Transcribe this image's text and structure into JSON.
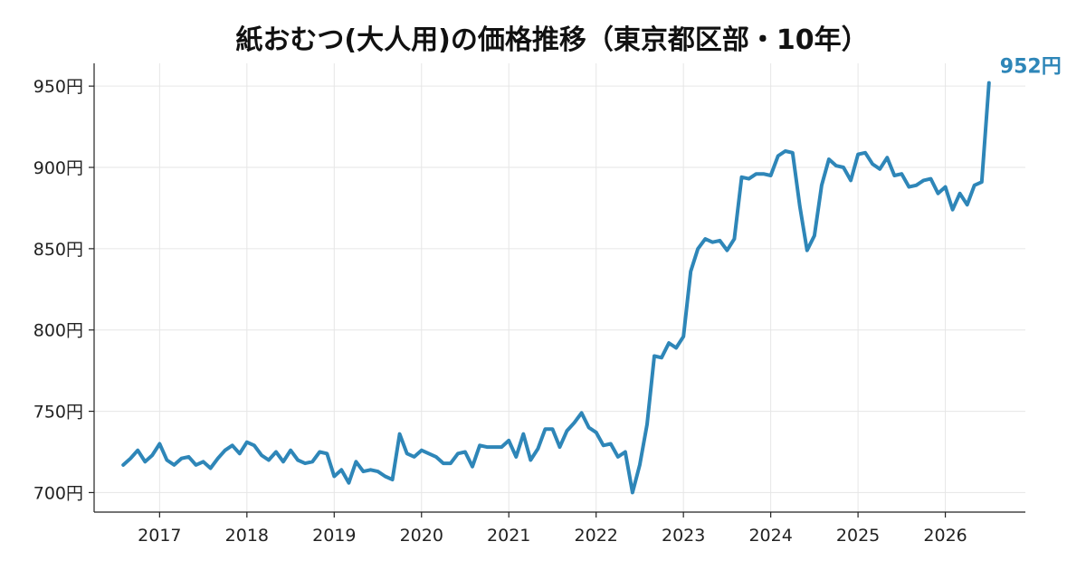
{
  "chart_data": {
    "type": "line",
    "title": "紙おむつ(大人用)の価格推移（東京都区部・10年）",
    "xlabel": "",
    "ylabel": "",
    "y_unit": "円",
    "ylim": [
      688,
      964
    ],
    "yticks": [
      700,
      750,
      800,
      850,
      900,
      950
    ],
    "ytick_labels": [
      "700円",
      "750円",
      "800円",
      "850円",
      "900円",
      "950円"
    ],
    "xlim": [
      "2016-04",
      "2026-12"
    ],
    "xticks": [
      "2017-01",
      "2018-01",
      "2019-01",
      "2020-01",
      "2021-01",
      "2022-01",
      "2023-01",
      "2024-01",
      "2025-01",
      "2026-01"
    ],
    "xtick_labels": [
      "2017",
      "2018",
      "2019",
      "2020",
      "2021",
      "2022",
      "2023",
      "2024",
      "2025",
      "2026"
    ],
    "grid": true,
    "line_color": "#2e86b8",
    "end_label": "952円",
    "series": [
      {
        "x": [
          "2016-08",
          "2016-09",
          "2016-10",
          "2016-11",
          "2016-12",
          "2017-01",
          "2017-02",
          "2017-03",
          "2017-04",
          "2017-05",
          "2017-06",
          "2017-07",
          "2017-08",
          "2017-09",
          "2017-10",
          "2017-11",
          "2017-12",
          "2018-01",
          "2018-02",
          "2018-03",
          "2018-04",
          "2018-05",
          "2018-06",
          "2018-07",
          "2018-08",
          "2018-09",
          "2018-10",
          "2018-11",
          "2018-12",
          "2019-01",
          "2019-02",
          "2019-03",
          "2019-04",
          "2019-05",
          "2019-06",
          "2019-07",
          "2019-08",
          "2019-09",
          "2019-10",
          "2019-11",
          "2019-12",
          "2020-01",
          "2020-02",
          "2020-03",
          "2020-04",
          "2020-05",
          "2020-06",
          "2020-07",
          "2020-08",
          "2020-09",
          "2020-10",
          "2020-11",
          "2020-12",
          "2021-01",
          "2021-02",
          "2021-03",
          "2021-04",
          "2021-05",
          "2021-06",
          "2021-07",
          "2021-08",
          "2021-09",
          "2021-10",
          "2021-11",
          "2021-12",
          "2022-01",
          "2022-02",
          "2022-03",
          "2022-04",
          "2022-05",
          "2022-06",
          "2022-07",
          "2022-08",
          "2022-09",
          "2022-10",
          "2022-11",
          "2022-12",
          "2023-01",
          "2023-02",
          "2023-03",
          "2023-04",
          "2023-05",
          "2023-06",
          "2023-07",
          "2023-08",
          "2023-09",
          "2023-10",
          "2023-11",
          "2023-12",
          "2024-01",
          "2024-02",
          "2024-03",
          "2024-04",
          "2024-05",
          "2024-06",
          "2024-07",
          "2024-08",
          "2024-09",
          "2024-10",
          "2024-11",
          "2024-12",
          "2025-01",
          "2025-02",
          "2025-03",
          "2025-04",
          "2025-05",
          "2025-06",
          "2025-07",
          "2025-08",
          "2025-09",
          "2025-10",
          "2025-11",
          "2025-12",
          "2026-01",
          "2026-02",
          "2026-03",
          "2026-04",
          "2026-05",
          "2026-06",
          "2026-07"
        ],
        "y": [
          717,
          721,
          726,
          719,
          723,
          730,
          720,
          717,
          721,
          722,
          717,
          719,
          715,
          721,
          726,
          729,
          724,
          731,
          729,
          723,
          720,
          725,
          719,
          726,
          720,
          718,
          719,
          725,
          724,
          710,
          714,
          706,
          719,
          713,
          714,
          713,
          710,
          708,
          736,
          724,
          722,
          726,
          724,
          722,
          718,
          718,
          724,
          725,
          716,
          729,
          728,
          728,
          728,
          732,
          722,
          736,
          720,
          727,
          739,
          739,
          728,
          738,
          743,
          749,
          740,
          737,
          729,
          730,
          722,
          725,
          700,
          717,
          742,
          784,
          783,
          792,
          789,
          796,
          836,
          850,
          856,
          854,
          855,
          849,
          856,
          894,
          893,
          896,
          896,
          895,
          907,
          910,
          909,
          876,
          849,
          858,
          889,
          905,
          901,
          900,
          892,
          908,
          909,
          902,
          899,
          906,
          895,
          896,
          888,
          889,
          892,
          893,
          884,
          888,
          874,
          884,
          877,
          889,
          891,
          952
        ]
      }
    ]
  }
}
